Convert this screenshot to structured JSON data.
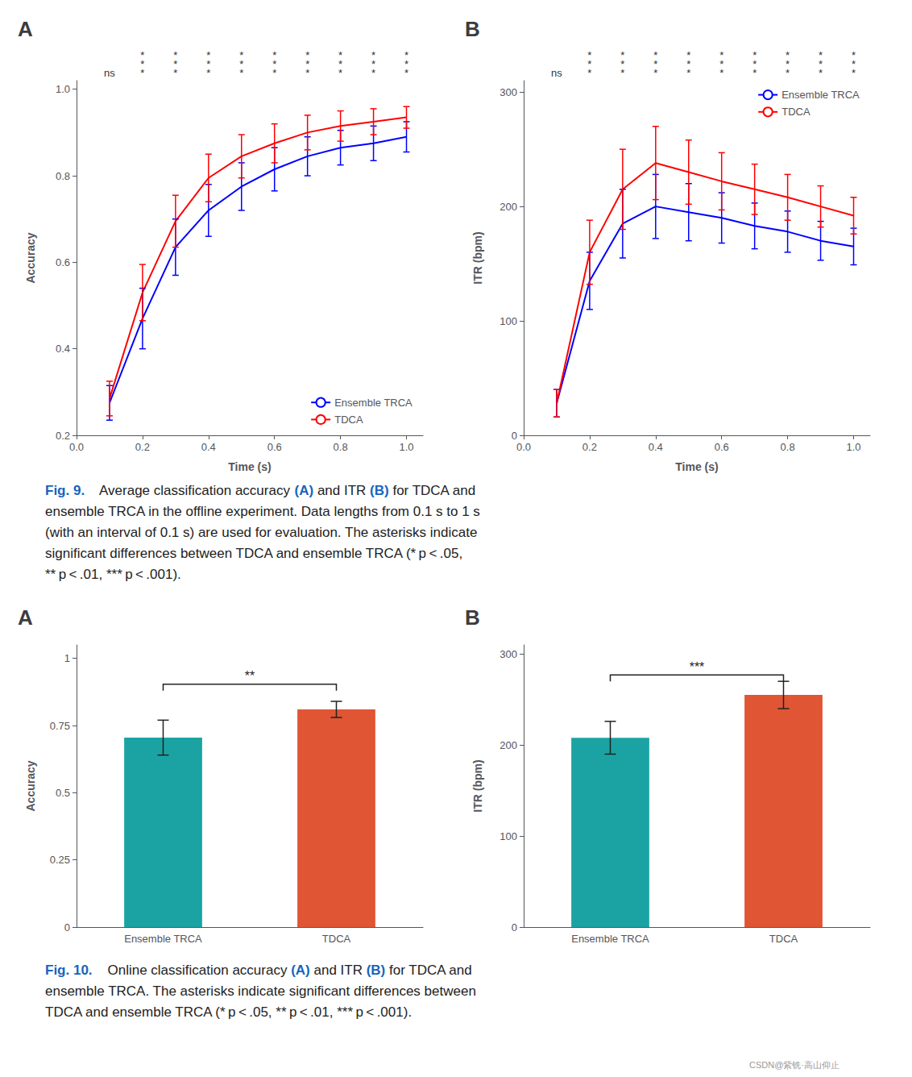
{
  "chart_data": [
    {
      "type": "line",
      "title": "A",
      "xlabel": "Time (s)",
      "ylabel": "Accuracy",
      "x": [
        0.1,
        0.2,
        0.3,
        0.4,
        0.5,
        0.6,
        0.7,
        0.8,
        0.9,
        1.0
      ],
      "series": [
        {
          "name": "Ensemble TRCA",
          "color": "#0000FF",
          "values": [
            0.275,
            0.47,
            0.635,
            0.72,
            0.775,
            0.815,
            0.845,
            0.865,
            0.875,
            0.89
          ],
          "errors": [
            0.04,
            0.07,
            0.065,
            0.06,
            0.055,
            0.05,
            0.045,
            0.04,
            0.04,
            0.035
          ]
        },
        {
          "name": "TDCA",
          "color": "#FF0000",
          "values": [
            0.285,
            0.53,
            0.695,
            0.795,
            0.845,
            0.875,
            0.9,
            0.915,
            0.925,
            0.935
          ],
          "errors": [
            0.04,
            0.065,
            0.06,
            0.055,
            0.05,
            0.045,
            0.04,
            0.035,
            0.03,
            0.025
          ]
        }
      ],
      "xlim": [
        0,
        1.05
      ],
      "xticks": [
        {
          "value": 0,
          "label": "0.0"
        },
        0.2,
        0.4,
        0.6,
        0.8,
        {
          "value": 1,
          "label": "1.0"
        }
      ],
      "ylim": [
        0.2,
        1.02
      ],
      "yticks": [
        0.2,
        0.4,
        0.6,
        0.8,
        {
          "value": 1.0,
          "label": "1.0"
        }
      ],
      "grid": false,
      "legend": "lower right",
      "annotations": [
        {
          "x": 0.1,
          "text": "ns"
        },
        {
          "x": 0.2,
          "text": "*\n*\n*"
        },
        {
          "x": 0.3,
          "text": "*\n*\n*"
        },
        {
          "x": 0.4,
          "text": "*\n*\n*"
        },
        {
          "x": 0.5,
          "text": "*\n*\n*"
        },
        {
          "x": 0.6,
          "text": "*\n*\n*"
        },
        {
          "x": 0.7,
          "text": "*\n*\n*"
        },
        {
          "x": 0.8,
          "text": "*\n*\n*"
        },
        {
          "x": 0.9,
          "text": "*\n*\n*"
        },
        {
          "x": 1.0,
          "text": "*\n*\n*"
        }
      ]
    },
    {
      "type": "line",
      "title": "B",
      "xlabel": "Time (s)",
      "ylabel": "ITR (bpm)",
      "x": [
        0.1,
        0.2,
        0.3,
        0.4,
        0.5,
        0.6,
        0.7,
        0.8,
        0.9,
        1.0
      ],
      "series": [
        {
          "name": "Ensemble TRCA",
          "color": "#0000FF",
          "values": [
            28,
            135,
            185,
            200,
            195,
            190,
            183,
            178,
            170,
            165
          ],
          "errors": [
            12,
            25,
            30,
            28,
            25,
            22,
            20,
            18,
            17,
            16
          ]
        },
        {
          "name": "TDCA",
          "color": "#FF0000",
          "values": [
            28,
            160,
            215,
            238,
            230,
            222,
            215,
            208,
            200,
            192
          ],
          "errors": [
            12,
            28,
            35,
            32,
            28,
            25,
            22,
            20,
            18,
            16
          ]
        }
      ],
      "xlim": [
        0,
        1.05
      ],
      "xticks": [
        {
          "value": 0,
          "label": "0.0"
        },
        0.2,
        0.4,
        0.6,
        0.8,
        {
          "value": 1,
          "label": "1.0"
        }
      ],
      "ylim": [
        0,
        310
      ],
      "yticks": [
        0,
        100,
        200,
        300
      ],
      "grid": false,
      "legend": "upper right",
      "annotations": [
        {
          "x": 0.1,
          "text": "ns"
        },
        {
          "x": 0.2,
          "text": "*\n*\n*"
        },
        {
          "x": 0.3,
          "text": "*\n*\n*"
        },
        {
          "x": 0.4,
          "text": "*\n*\n*"
        },
        {
          "x": 0.5,
          "text": "*\n*\n*"
        },
        {
          "x": 0.6,
          "text": "*\n*\n*"
        },
        {
          "x": 0.7,
          "text": "*\n*\n*"
        },
        {
          "x": 0.8,
          "text": "*\n*\n*"
        },
        {
          "x": 0.9,
          "text": "*\n*\n*"
        },
        {
          "x": 1.0,
          "text": "*\n*\n*"
        }
      ]
    },
    {
      "type": "bar",
      "title": "A",
      "ylabel": "Accuracy",
      "categories": [
        "Ensemble TRCA",
        "TDCA"
      ],
      "values": [
        0.705,
        0.81
      ],
      "errors": [
        0.065,
        0.03
      ],
      "colors": [
        "#1BA3A3",
        "#E05533"
      ],
      "ylim": [
        0,
        1.05
      ],
      "yticks": [
        0,
        0.25,
        0.5,
        0.75,
        1
      ],
      "grid": false,
      "annotations": [
        {
          "text": "**",
          "y": 0.88
        }
      ]
    },
    {
      "type": "bar",
      "title": "B",
      "ylabel": "ITR (bpm)",
      "categories": [
        "Ensemble TRCA",
        "TDCA"
      ],
      "values": [
        208,
        255
      ],
      "errors": [
        18,
        15
      ],
      "colors": [
        "#1BA3A3",
        "#E05533"
      ],
      "ylim": [
        0,
        310
      ],
      "yticks": [
        0,
        100,
        200,
        300
      ],
      "grid": false,
      "annotations": [
        {
          "text": "***",
          "y": 270
        }
      ]
    }
  ],
  "annotations": [
    {
      "lines": [
        [
          {
            "text": "Fig. 9.",
            "color": "#1565C0"
          },
          {
            "text": "    Average classification accuracy "
          },
          {
            "text": "(A)",
            "color": "#1565C0"
          },
          {
            "text": " and ITR "
          },
          {
            "text": "(B)",
            "color": "#1565C0"
          },
          {
            "text": " for TDCA and"
          }
        ],
        "ensemble TRCA in the offline experiment. Data lengths from 0.1 s to 1 s",
        "(with an interval of 0.1 s) are used for evaluation. The asterisks indicate",
        "significant differences between TDCA and ensemble TRCA (* ​p < .05,",
        "** p < .01, *** p < .001)."
      ]
    },
    {
      "lines": [
        [
          {
            "text": "Fig. 10.",
            "color": "#1565C0"
          },
          {
            "text": "    Online classification accuracy "
          },
          {
            "text": "(A)",
            "color": "#1565C0"
          },
          {
            "text": " and ITR "
          },
          {
            "text": "(B)",
            "color": "#1565C0"
          },
          {
            "text": " for TDCA and"
          }
        ],
        "ensemble TRCA. The asterisks indicate significant differences between",
        "TDCA and ensemble TRCA (* p < .05, ** p < .01, *** p < .001)."
      ]
    },
    {
      "text": "CSDN@紫铣·高山仰止",
      "color": "#999999"
    }
  ]
}
